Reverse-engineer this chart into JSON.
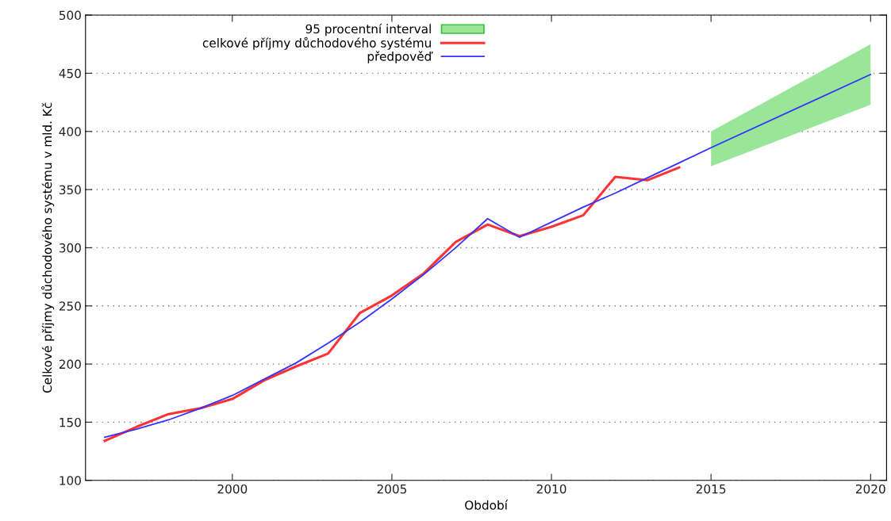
{
  "chart_data": {
    "type": "line",
    "xlabel": "Období",
    "ylabel": "Celkové příjmy důchodového systému v mld. Kč",
    "xlim": [
      1995.4,
      2020.5
    ],
    "xticks": [
      2000,
      2005,
      2010,
      2015,
      2020
    ],
    "ylim": [
      100,
      500
    ],
    "yticks": [
      100,
      150,
      200,
      250,
      300,
      350,
      400,
      450,
      500
    ],
    "grid": "y",
    "legend": "top",
    "line_style": "solid",
    "marker": "none",
    "series": [
      {
        "name": "95 procentní interval",
        "type": "area",
        "color": "#99e699",
        "x": [
          2015,
          2020
        ],
        "values": [
          null,
          null
        ],
        "lower": [
          370,
          423
        ],
        "upper": [
          400,
          475
        ]
      },
      {
        "name": "celkové příjmy důchodového systému",
        "type": "line",
        "color": "#ff3333",
        "x": [
          1996,
          1997,
          1998,
          1999,
          2000,
          2001,
          2002,
          2003,
          2004,
          2005,
          2006,
          2007,
          2008,
          2009,
          2010,
          2011,
          2012,
          2013,
          2014
        ],
        "values": [
          134,
          146,
          157,
          162,
          170,
          186,
          198,
          209,
          244,
          259,
          278,
          305,
          320,
          310,
          318,
          328,
          361,
          358,
          369
        ]
      },
      {
        "name": "předpověď",
        "color": "#3333ff",
        "x": [
          1996,
          1997,
          1998,
          1999,
          2000,
          2001,
          2002,
          2003,
          2004,
          2005,
          2006,
          2007,
          2008,
          2009,
          2010,
          2011,
          2012,
          2013,
          2014,
          2015,
          2020
        ],
        "values": [
          137,
          144,
          152,
          162,
          173,
          187,
          201,
          218,
          236,
          256,
          277,
          300,
          325,
          309,
          322,
          335,
          347,
          360,
          373,
          386,
          449
        ]
      }
    ]
  }
}
